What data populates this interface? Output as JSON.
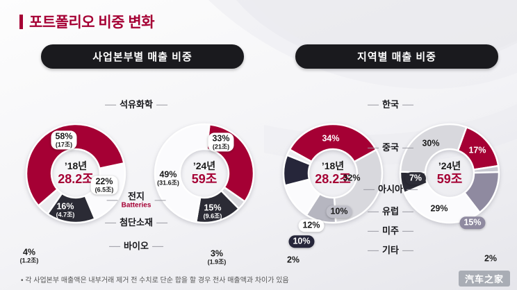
{
  "title": "포트폴리오 비중 변화",
  "footnote_bullet": "•",
  "footnote": "각 사업본부 매출액은 내부거래 제거 전 수치로 단순 합을 할 경우 전사 매출액과 차이가 있음",
  "watermark": "汽车之家",
  "colors": {
    "brand": "#A50034",
    "dark": "#2B2B35",
    "light_gray": "#D8D8DD",
    "navy": "#26263A",
    "purple_gray": "#8F8AA0"
  },
  "chart_data": [
    {
      "type": "pie",
      "title": "사업본부별 매출 비중",
      "categories": [
        "석유화학",
        "전지",
        "첨단소재",
        "바이오"
      ],
      "category_subs": [
        "",
        "Batteries",
        "",
        ""
      ],
      "series": [
        {
          "name": "’18년",
          "total_label": "28.2조",
          "values_pct": [
            58,
            22,
            16,
            4
          ],
          "values_abs": [
            "17조",
            "6.5조",
            "4.7조",
            "1.2조"
          ]
        },
        {
          "name": "’24년",
          "total_label": "59조",
          "values_pct": [
            33,
            49,
            15,
            3
          ],
          "values_abs": [
            "21조",
            "31.6조",
            "9.6조",
            "1.9조"
          ]
        }
      ],
      "legend_position": "center-column",
      "grid": false
    },
    {
      "type": "pie",
      "title": "지역별 매출 비중",
      "categories": [
        "한국",
        "중국",
        "아시아",
        "유럽",
        "미주",
        "기타"
      ],
      "category_subs": [
        "",
        "",
        "",
        "",
        "",
        ""
      ],
      "series": [
        {
          "name": "’18년",
          "total_label": "28.2조",
          "values_pct": [
            34,
            32,
            10,
            12,
            10,
            2
          ]
        },
        {
          "name": "’24년",
          "total_label": "59조",
          "values_pct": [
            17,
            30,
            7,
            29,
            15,
            2
          ]
        }
      ],
      "legend_position": "center-column",
      "grid": false
    }
  ]
}
